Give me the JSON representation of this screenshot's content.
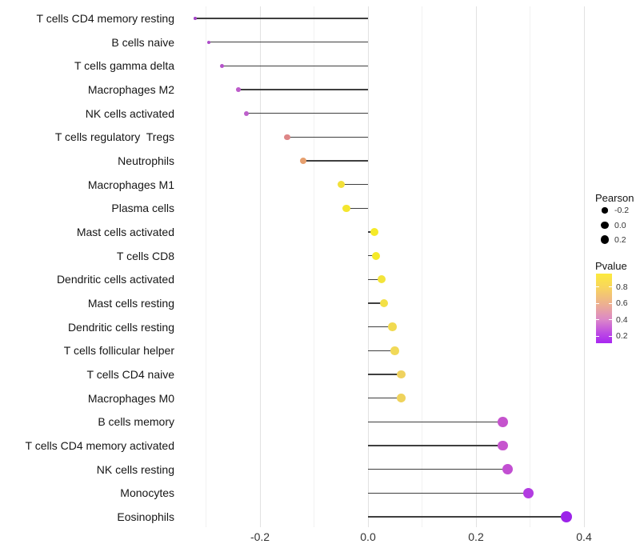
{
  "chart_data": {
    "type": "lollipop",
    "title": "",
    "xlabel": "",
    "ylabel": "",
    "orientation": "horizontal",
    "grid": "vertical-only",
    "legend_position": "right",
    "x_axis": {
      "range": [
        -0.352,
        0.401
      ],
      "tick_values": [
        -0.2,
        0.0,
        0.2,
        0.4
      ],
      "tick_labels": [
        "-0.2",
        "0.0",
        "0.2",
        "0.4"
      ],
      "minor_tick_values": [
        -0.3,
        -0.1,
        0.1,
        0.3
      ]
    },
    "rows": [
      {
        "label": "T cells CD4 memory resting",
        "pearson": -0.32,
        "color": "#a245c5"
      },
      {
        "label": "B cells naive",
        "pearson": -0.295,
        "color": "#ad4cc8"
      },
      {
        "label": "T cells gamma delta",
        "pearson": -0.27,
        "color": "#b553ca"
      },
      {
        "label": "Macrophages M2",
        "pearson": -0.24,
        "color": "#bd5cca"
      },
      {
        "label": "NK cells activated",
        "pearson": -0.225,
        "color": "#bd5fcb"
      },
      {
        "label": "T cells regulatory  Tregs",
        "pearson": -0.15,
        "color": "#dd8687"
      },
      {
        "label": "Neutrophils",
        "pearson": -0.12,
        "color": "#e69f6e"
      },
      {
        "label": "Macrophages M1",
        "pearson": -0.05,
        "color": "#f2e03a"
      },
      {
        "label": "Plasma cells",
        "pearson": -0.04,
        "color": "#f4e62e"
      },
      {
        "label": "Mast cells activated",
        "pearson": 0.012,
        "color": "#f5ea28"
      },
      {
        "label": "T cells CD8",
        "pearson": 0.015,
        "color": "#f5ea28"
      },
      {
        "label": "Dendritic cells activated",
        "pearson": 0.025,
        "color": "#f3e43a"
      },
      {
        "label": "Mast cells resting",
        "pearson": 0.03,
        "color": "#f3e046"
      },
      {
        "label": "Dendritic cells resting",
        "pearson": 0.045,
        "color": "#f1da50"
      },
      {
        "label": "T cells follicular helper",
        "pearson": 0.05,
        "color": "#f1d958"
      },
      {
        "label": "T cells CD4 naive",
        "pearson": 0.062,
        "color": "#efd25f"
      },
      {
        "label": "Macrophages M0",
        "pearson": 0.061,
        "color": "#efd35c"
      },
      {
        "label": "B cells memory",
        "pearson": 0.249,
        "color": "#c553cd"
      },
      {
        "label": "T cells CD4 memory activated",
        "pearson": 0.25,
        "color": "#c655ce"
      },
      {
        "label": "NK cells resting",
        "pearson": 0.258,
        "color": "#c24fd2"
      },
      {
        "label": "Monocytes",
        "pearson": 0.297,
        "color": "#b23ce1"
      },
      {
        "label": "Eosinophils",
        "pearson": 0.367,
        "color": "#9c23e9"
      }
    ],
    "size_legend": {
      "title": "Pearson",
      "entries": [
        {
          "label": "-0.2",
          "value": -0.2
        },
        {
          "label": "0.0",
          "value": 0.0
        },
        {
          "label": "0.2",
          "value": 0.2
        }
      ],
      "dot_color": "#000000"
    },
    "color_legend": {
      "title": "Pvalue",
      "tick_labels": [
        "0.8",
        "0.6",
        "0.4",
        "0.2"
      ],
      "tick_values": [
        0.8,
        0.6,
        0.4,
        0.2
      ],
      "bar_value_range": [
        0.965,
        0.113
      ],
      "gradient_stops": [
        {
          "pos": 0,
          "color": "#fcea3d"
        },
        {
          "pos": 20,
          "color": "#f8d55e"
        },
        {
          "pos": 45,
          "color": "#ecae93"
        },
        {
          "pos": 66,
          "color": "#dc88c8"
        },
        {
          "pos": 86,
          "color": "#bc49e4"
        },
        {
          "pos": 100,
          "color": "#a826f1"
        }
      ]
    },
    "colors": {
      "stem": "#3f3f3f",
      "grid_major": "#e2e2e2",
      "grid_minor": "#f1f1f1",
      "background": "#ffffff"
    }
  }
}
